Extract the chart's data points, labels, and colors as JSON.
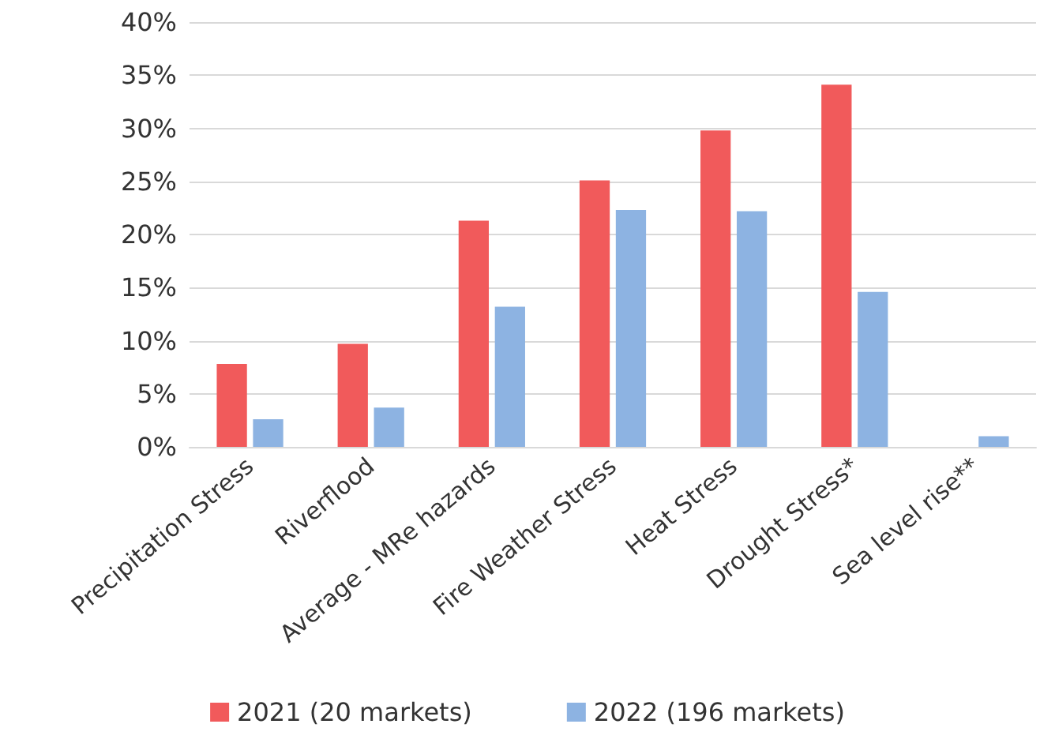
{
  "chart_data": {
    "type": "bar",
    "categories": [
      "Precipitation Stress",
      "Riverflood",
      "Average - MRe hazards",
      "Fire Weather Stress",
      "Heat Stress",
      "Drought Stress*",
      "Sea level rise**"
    ],
    "series": [
      {
        "name": "2021 (20 markets)",
        "color": "#f15a5b",
        "values": [
          7.8,
          9.7,
          21.3,
          25.1,
          29.8,
          34.1,
          null
        ]
      },
      {
        "name": "2022 (196 markets)",
        "color": "#8db3e2",
        "values": [
          2.6,
          3.7,
          13.2,
          22.3,
          22.2,
          14.6,
          1.0
        ]
      }
    ],
    "ylim": [
      0,
      40
    ],
    "yticks": [
      {
        "value": 0,
        "label": "0%"
      },
      {
        "value": 5,
        "label": "5%"
      },
      {
        "value": 10,
        "label": "10%"
      },
      {
        "value": 15,
        "label": "15%"
      },
      {
        "value": 20,
        "label": "20%"
      },
      {
        "value": 25,
        "label": "25%"
      },
      {
        "value": 30,
        "label": "30%"
      },
      {
        "value": 35,
        "label": "35%"
      },
      {
        "value": 40,
        "label": "40%"
      }
    ],
    "grid": "y",
    "legend": "bottom"
  }
}
